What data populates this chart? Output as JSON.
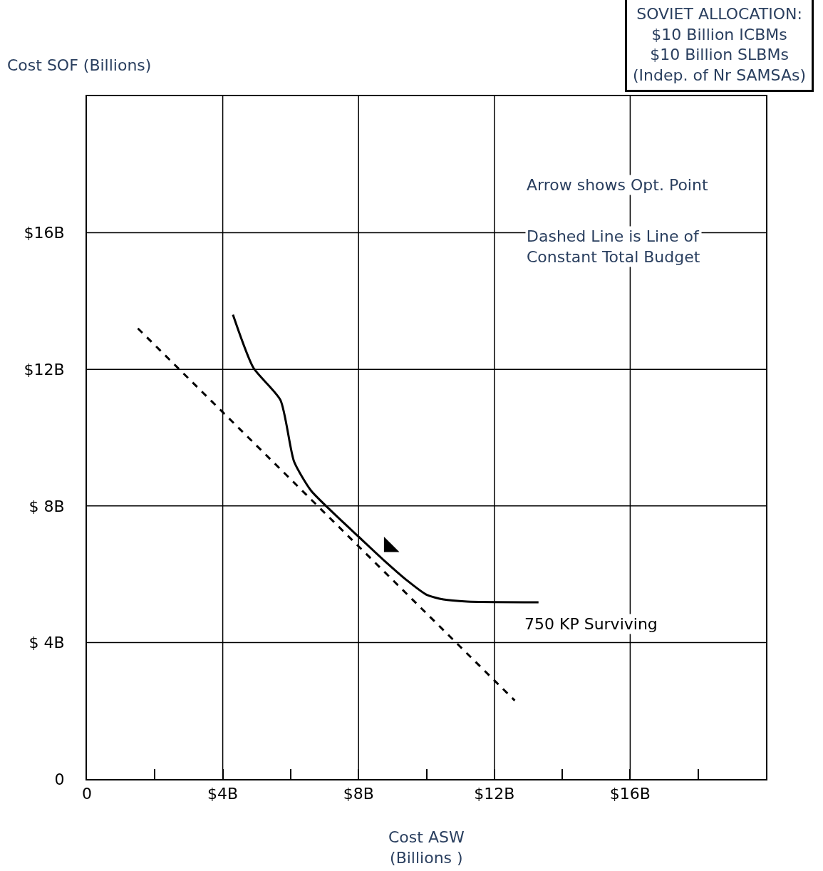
{
  "chart_data": {
    "type": "line",
    "xlabel": "Cost ASW\n(Billions )",
    "ylabel": "Cost SOF (Billions)",
    "xlim": [
      0,
      20
    ],
    "ylim": [
      0,
      20
    ],
    "xticks": [
      {
        "value": 0,
        "label": "0"
      },
      {
        "value": 2,
        "label": null
      },
      {
        "value": 4,
        "label": "$4B"
      },
      {
        "value": 6,
        "label": null
      },
      {
        "value": 8,
        "label": "$8B"
      },
      {
        "value": 10,
        "label": null
      },
      {
        "value": 12,
        "label": "$12B"
      },
      {
        "value": 14,
        "label": null
      },
      {
        "value": 16,
        "label": "$16B"
      },
      {
        "value": 18,
        "label": null
      }
    ],
    "yticks": [
      {
        "value": 0,
        "label": "0"
      },
      {
        "value": 4,
        "label": "$ 4B"
      },
      {
        "value": 8,
        "label": "$ 8B"
      },
      {
        "value": 12,
        "label": "$12B"
      },
      {
        "value": 16,
        "label": "$16B"
      }
    ],
    "grid": true,
    "series": [
      {
        "name": "750 KP Surviving",
        "color": "#000000",
        "line_style": "solid",
        "x": [
          4.3,
          4.9,
          5.7,
          6.1,
          6.6,
          7.25,
          8.0,
          8.7,
          9.45,
          10.0,
          10.5,
          11.2,
          13.3
        ],
        "values": [
          13.6,
          12.05,
          11.1,
          9.3,
          8.45,
          7.8,
          7.1,
          6.45,
          5.8,
          5.4,
          5.26,
          5.2,
          5.18
        ]
      },
      {
        "color": "#000000",
        "line_style": "dashed",
        "x": [
          1.5,
          12.6
        ],
        "values": [
          13.2,
          2.3
        ]
      },
      {
        "type": "scatter",
        "marker": "triangle",
        "color": "#000000",
        "x": [
          8.9
        ],
        "values": [
          6.8
        ]
      }
    ],
    "annotations": [
      "SOVIET ALLOCATION:\n$10 Billion ICBMs\n$10 Billion SLBMs\n(Indep. of Nr SAMSAs)",
      "Arrow shows Opt. Point",
      "Dashed Line is Line of\nConstant Total Budget"
    ]
  }
}
